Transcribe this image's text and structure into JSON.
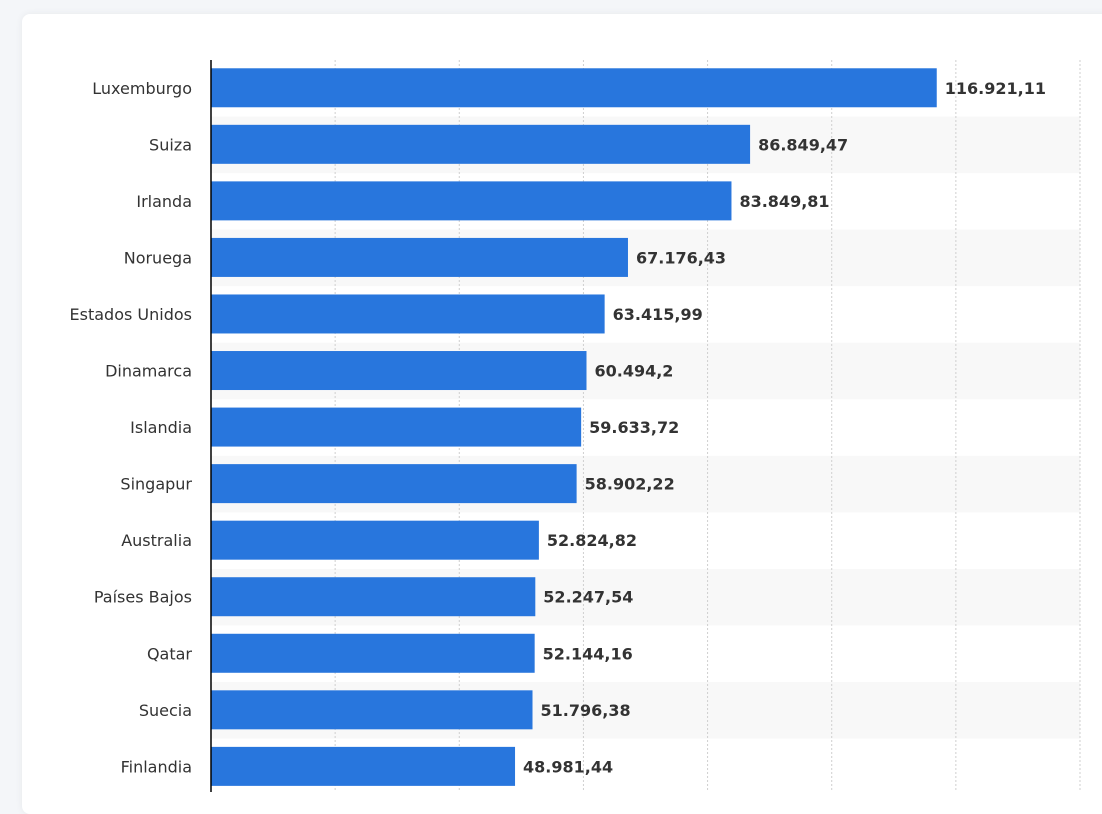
{
  "chart_data": {
    "type": "bar",
    "orientation": "horizontal",
    "categories": [
      "Luxemburgo",
      "Suiza",
      "Irlanda",
      "Noruega",
      "Estados Unidos",
      "Dinamarca",
      "Islandia",
      "Singapur",
      "Australia",
      "Países Bajos",
      "Qatar",
      "Suecia",
      "Finlandia"
    ],
    "values": [
      116921.11,
      86849.47,
      83849.81,
      67176.43,
      63415.99,
      60494.2,
      59633.72,
      58902.22,
      52824.82,
      52247.54,
      52144.16,
      51796.38,
      48981.44
    ],
    "value_labels": [
      "116.921,11",
      "86.849,47",
      "83.849,81",
      "67.176,43",
      "63.415,99",
      "60.494,2",
      "59.633,72",
      "58.902,22",
      "52.824,82",
      "52.247,54",
      "52.144,16",
      "51.796,38",
      "48.981,44"
    ],
    "xlim": [
      0,
      140000
    ],
    "grid": true,
    "colors": {
      "bar": "#2876dd",
      "stripe": "#f8f8f8",
      "grid": "#cfcfcf",
      "axis": "#000000"
    }
  }
}
